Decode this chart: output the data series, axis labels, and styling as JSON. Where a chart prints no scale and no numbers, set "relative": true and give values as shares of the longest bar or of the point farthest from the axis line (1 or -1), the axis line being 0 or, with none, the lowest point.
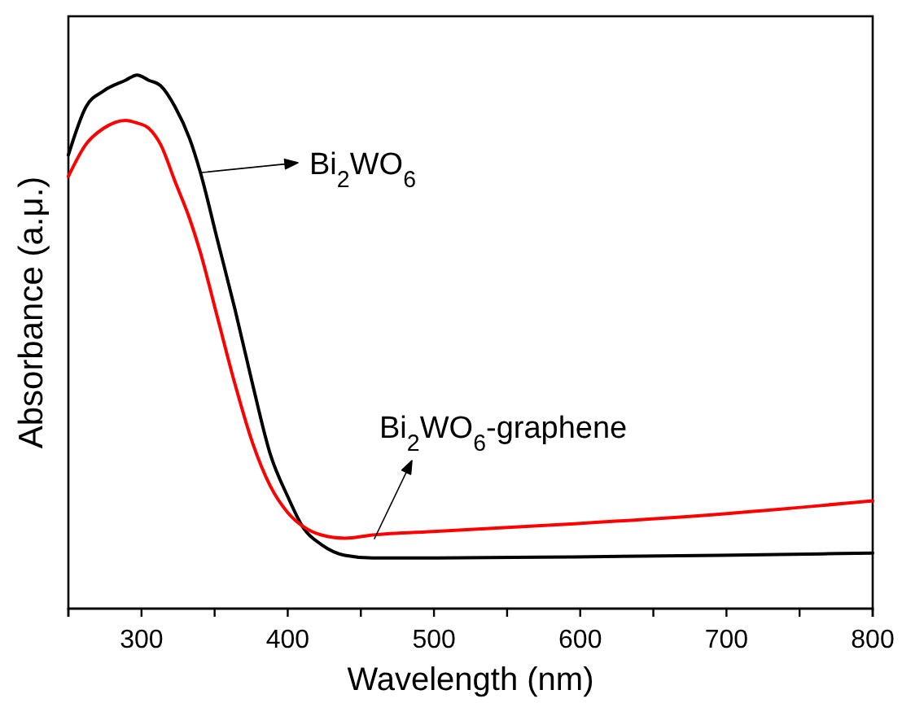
{
  "chart_data": {
    "type": "line",
    "relative": true,
    "xlabel": "Wavelength (nm)",
    "ylabel": "Absorbance (a.μ.)",
    "xlim": [
      250,
      800
    ],
    "xticks": [
      {
        "value": 250,
        "label": null
      },
      300,
      {
        "value": 350,
        "label": null
      },
      400,
      {
        "value": 450,
        "label": null
      },
      500,
      {
        "value": 550,
        "label": null
      },
      600,
      {
        "value": 650,
        "label": null
      },
      700,
      {
        "value": 750,
        "label": null
      },
      800
    ],
    "x": [
      250,
      262,
      274,
      289,
      297,
      305,
      313,
      323,
      333,
      340,
      352,
      364,
      376,
      388,
      400,
      411,
      423,
      439,
      458,
      502,
      596,
      695,
      800
    ],
    "series": [
      {
        "color": "#000000",
        "values": [
          0.85,
          0.94,
          0.97,
          0.99,
          1.0,
          0.99,
          0.98,
          0.94,
          0.88,
          0.82,
          0.69,
          0.56,
          0.42,
          0.29,
          0.21,
          0.15,
          0.12,
          0.1,
          0.095,
          0.095,
          0.097,
          0.1,
          0.104
        ]
      },
      {
        "color": "#ff0000",
        "values": [
          0.81,
          0.87,
          0.9,
          0.915,
          0.91,
          0.9,
          0.87,
          0.8,
          0.73,
          0.67,
          0.545,
          0.42,
          0.31,
          0.23,
          0.18,
          0.153,
          0.138,
          0.132,
          0.138,
          0.145,
          0.159,
          0.177,
          0.202
        ]
      }
    ],
    "annotations": [
      "Bi$_{2}$WO$_{6}$",
      "Bi$_{2}$WO$_{6}$-graphene"
    ],
    "legend": false,
    "grid": false,
    "marker": "none",
    "line_style": "solid"
  }
}
